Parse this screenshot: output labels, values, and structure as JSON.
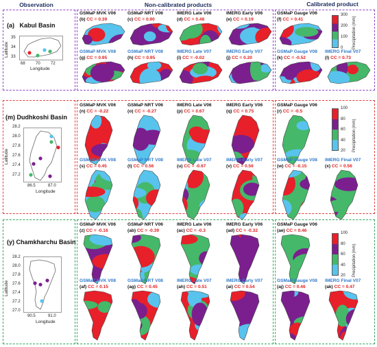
{
  "headers": {
    "observation": "Observation",
    "non_calibrated": "Non-calibrated products",
    "calibrated": "Calibrated product"
  },
  "colors": {
    "purple": "#7b1f8f",
    "red": "#e8202a",
    "green": "#45b86a",
    "lightblue": "#58c3ec"
  },
  "colorbars": [
    {
      "ticks": [
        "300",
        "200",
        "100",
        "0"
      ],
      "title": "Precipitation (mm)"
    },
    {
      "ticks": [
        "100",
        "80",
        "60",
        "40",
        "20"
      ],
      "title": "Precipitation (mm)"
    },
    {
      "ticks": [
        "100",
        "80",
        "60",
        "40",
        "20"
      ],
      "title": "Precipitation (mm)"
    }
  ],
  "rows": [
    {
      "label": "(a)",
      "name": "Kabul Basin",
      "xticks": [
        "68",
        "70",
        "72"
      ],
      "yticks": [
        "35",
        "34",
        "33"
      ],
      "xlabel": "Longitude",
      "ylabel": "Latitude",
      "panels": [
        {
          "title": "GSMaP MVK V06",
          "color": "black",
          "id": "(b)",
          "cc": "0.39"
        },
        {
          "title": "GSMaP NRT V06",
          "color": "black",
          "id": "(c)",
          "cc": "0.90"
        },
        {
          "title": "IMERG Late V06",
          "color": "black",
          "id": "(d)",
          "cc": "0.48"
        },
        {
          "title": "IMERG Early V06",
          "color": "black",
          "id": "(e)",
          "cc": "0.19"
        },
        {
          "title": "GSMaP Gauge V06",
          "color": "black",
          "id": "(f)",
          "cc": "0.41"
        },
        {
          "title": "GSMaP MVK V08",
          "color": "blue",
          "id": "(g)",
          "cc": "0.95"
        },
        {
          "title": "GSMaP NRT V08",
          "color": "blue",
          "id": "(h)",
          "cc": "0.95"
        },
        {
          "title": "IMERG Late V07",
          "color": "blue",
          "id": "(i)",
          "cc": "-0.02"
        },
        {
          "title": "IMERG Early V07",
          "color": "blue",
          "id": "(j)",
          "cc": "0.20"
        },
        {
          "title": "GSMaP Gauge V08",
          "color": "blue",
          "id": "(k)",
          "cc": "-0.52"
        },
        {
          "title": "IMERG Final V07",
          "color": "blue",
          "id": "(l)",
          "cc": "0.73"
        }
      ]
    },
    {
      "label": "(m)",
      "name": "Dudhkoshi Basin",
      "xticks": [
        "86.5",
        "87.0"
      ],
      "yticks": [
        "28.2",
        "28.0",
        "27.8",
        "27.6",
        "27.4",
        "27.2"
      ],
      "xlabel": "Longitude",
      "ylabel": "Latitude",
      "panels": [
        {
          "title": "GSMaP MVK V06",
          "color": "black",
          "id": "(n)",
          "cc": "-0.22"
        },
        {
          "title": "GSMaP NRT V06",
          "color": "black",
          "id": "(o)",
          "cc": "-0.27"
        },
        {
          "title": "IMERG Late V06",
          "color": "black",
          "id": "(p)",
          "cc": "0.67"
        },
        {
          "title": "IMERG Early V06",
          "color": "black",
          "id": "(q)",
          "cc": "0.75"
        },
        {
          "title": "GSMaP Gauge V06",
          "color": "black",
          "id": "(r)",
          "cc": "-0.5"
        },
        {
          "title": "GSMaP MVK V08",
          "color": "blue",
          "id": "(s)",
          "cc": "0.45"
        },
        {
          "title": "GSMaP NRT V08",
          "color": "blue",
          "id": "(t)",
          "cc": "0.56"
        },
        {
          "title": "IMERG Late V07",
          "color": "blue",
          "id": "(u)",
          "cc": "-0.67"
        },
        {
          "title": "IMERG Early V07",
          "color": "blue",
          "id": "(v)",
          "cc": "0.56"
        },
        {
          "title": "GSMaP Gauge V08",
          "color": "blue",
          "id": "(w)",
          "cc": "-0.15"
        },
        {
          "title": "IMERG Final V07",
          "color": "blue",
          "id": "(x)",
          "cc": "0.56"
        }
      ]
    },
    {
      "label": "(y)",
      "name": "Chamkharchu Basin",
      "xticks": [
        "90.5",
        "91.0"
      ],
      "yticks": [
        "28.2",
        "28.0",
        "27.8",
        "27.6",
        "27.4",
        "27.2",
        "27.0"
      ],
      "xlabel": "Longitude",
      "ylabel": "Latitude",
      "panels": [
        {
          "title": "GSMaP MVK V06",
          "color": "black",
          "id": "(z)",
          "cc": "-0.16"
        },
        {
          "title": "GSMaP NRT V06",
          "color": "black",
          "id": "(ab)",
          "cc": "-0.39"
        },
        {
          "title": "IMERG Late V06",
          "color": "black",
          "id": "(ac)",
          "cc": "-0.3"
        },
        {
          "title": "IMERG Early V06",
          "color": "black",
          "id": "(ad)",
          "cc": "-0.32"
        },
        {
          "title": "GSMaP Gauge V06",
          "color": "black",
          "id": "(ae)",
          "cc": "0.46"
        },
        {
          "title": "GSMaP MVK V08",
          "color": "blue",
          "id": "(af)",
          "cc": "0.15"
        },
        {
          "title": "GSMaP NRT V08",
          "color": "blue",
          "id": "(ag)",
          "cc": "0.45"
        },
        {
          "title": "IMERG Late V07",
          "color": "blue",
          "id": "(ah)",
          "cc": "0.51"
        },
        {
          "title": "IMERG Early V07",
          "color": "blue",
          "id": "(ai)",
          "cc": "0.54"
        },
        {
          "title": "GSMaP Gauge V08",
          "color": "blue",
          "id": "(aj)",
          "cc": "0.46"
        },
        {
          "title": "IMERG Final V07",
          "color": "blue",
          "id": "(ak)",
          "cc": "0.47"
        }
      ]
    }
  ]
}
